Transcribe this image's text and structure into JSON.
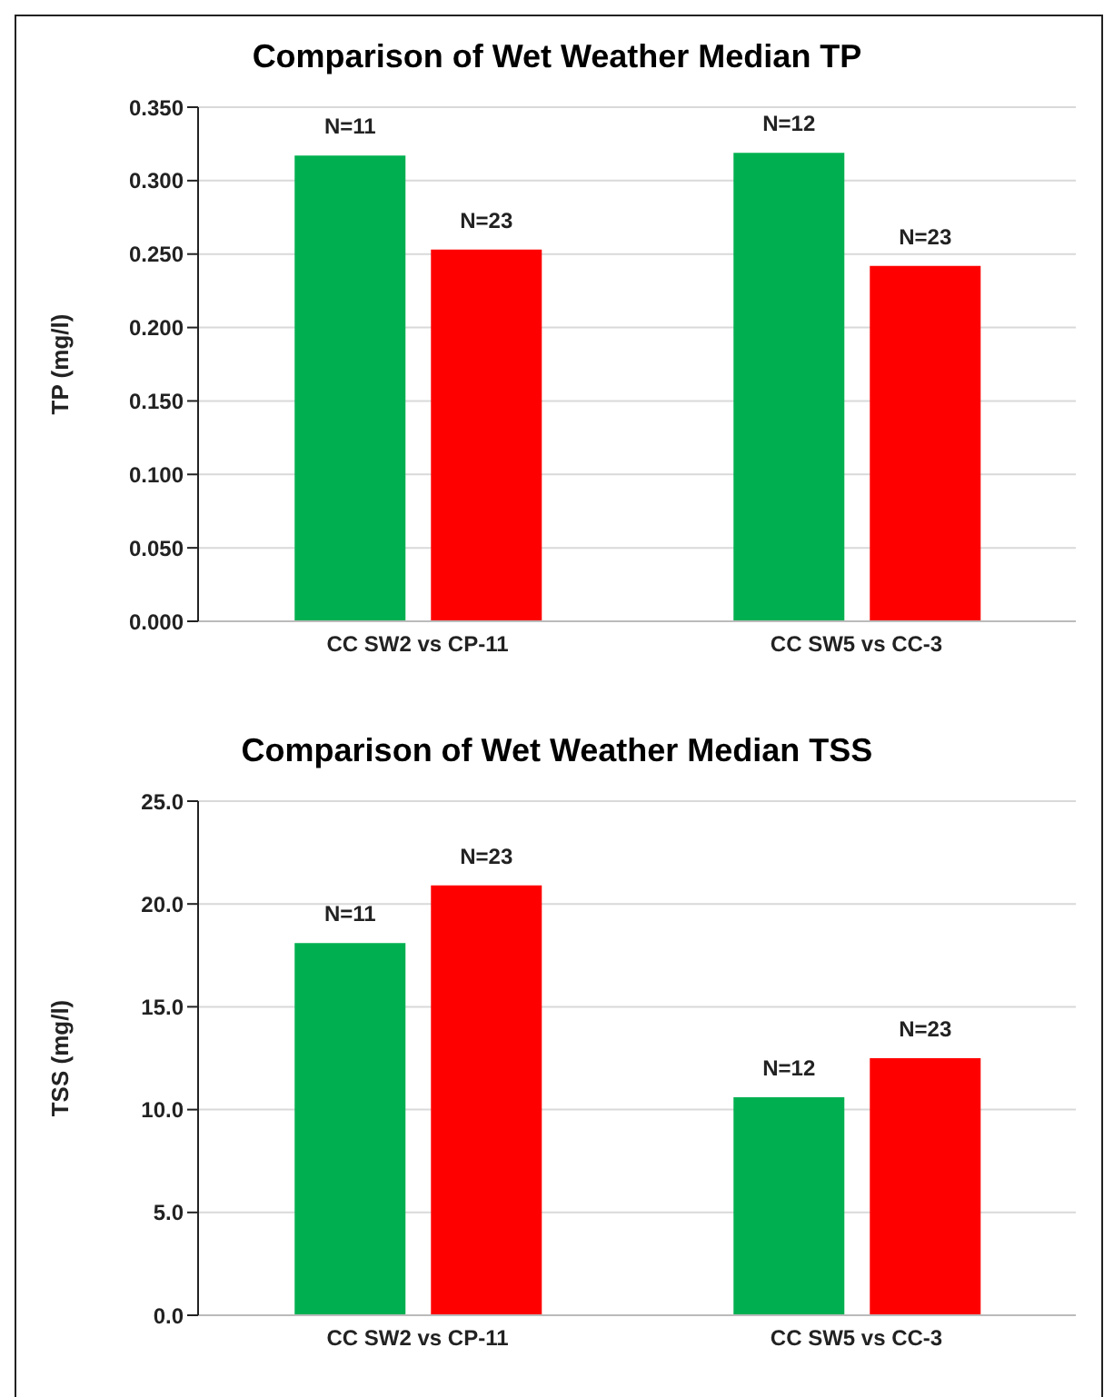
{
  "chart_data": [
    {
      "type": "bar",
      "title": "Comparison of Wet Weather Median TP",
      "ylabel": "TP (mg/l)",
      "categories": [
        "CC SW2 vs CP-11",
        "CC SW5 vs CC-3"
      ],
      "series": [
        {
          "color": "#00b050",
          "values": [
            0.317,
            0.319
          ]
        },
        {
          "color": "#ff0000",
          "values": [
            0.253,
            0.242
          ]
        }
      ],
      "annotations": [
        "N=11",
        "N=23",
        "N=12",
        "N=23"
      ],
      "ylim": [
        0,
        0.35
      ],
      "yticks": [
        {
          "value": 0,
          "label": "0.000"
        },
        {
          "value": 0.05,
          "label": "0.050"
        },
        {
          "value": 0.1,
          "label": "0.100"
        },
        {
          "value": 0.15,
          "label": "0.150"
        },
        {
          "value": 0.2,
          "label": "0.200"
        },
        {
          "value": 0.25,
          "label": "0.250"
        },
        {
          "value": 0.3,
          "label": "0.300"
        },
        {
          "value": 0.35,
          "label": "0.350"
        }
      ],
      "grid": "y"
    },
    {
      "type": "bar",
      "title": "Comparison of Wet Weather Median TSS",
      "ylabel": "TSS  (mg/l)",
      "categories": [
        "CC SW2 vs CP-11",
        "CC SW5 vs CC-3"
      ],
      "series": [
        {
          "color": "#00b050",
          "values": [
            18.1,
            10.6
          ]
        },
        {
          "color": "#ff0000",
          "values": [
            20.9,
            12.5
          ]
        }
      ],
      "annotations": [
        "N=11",
        "N=23",
        "N=12",
        "N=23"
      ],
      "ylim": [
        0,
        25
      ],
      "yticks": [
        {
          "value": 0,
          "label": "0.0"
        },
        {
          "value": 5,
          "label": "5.0"
        },
        {
          "value": 10,
          "label": "10.0"
        },
        {
          "value": 15,
          "label": "15.0"
        },
        {
          "value": 20,
          "label": "20.0"
        },
        {
          "value": 25,
          "label": "25.0"
        }
      ],
      "grid": "y"
    }
  ]
}
